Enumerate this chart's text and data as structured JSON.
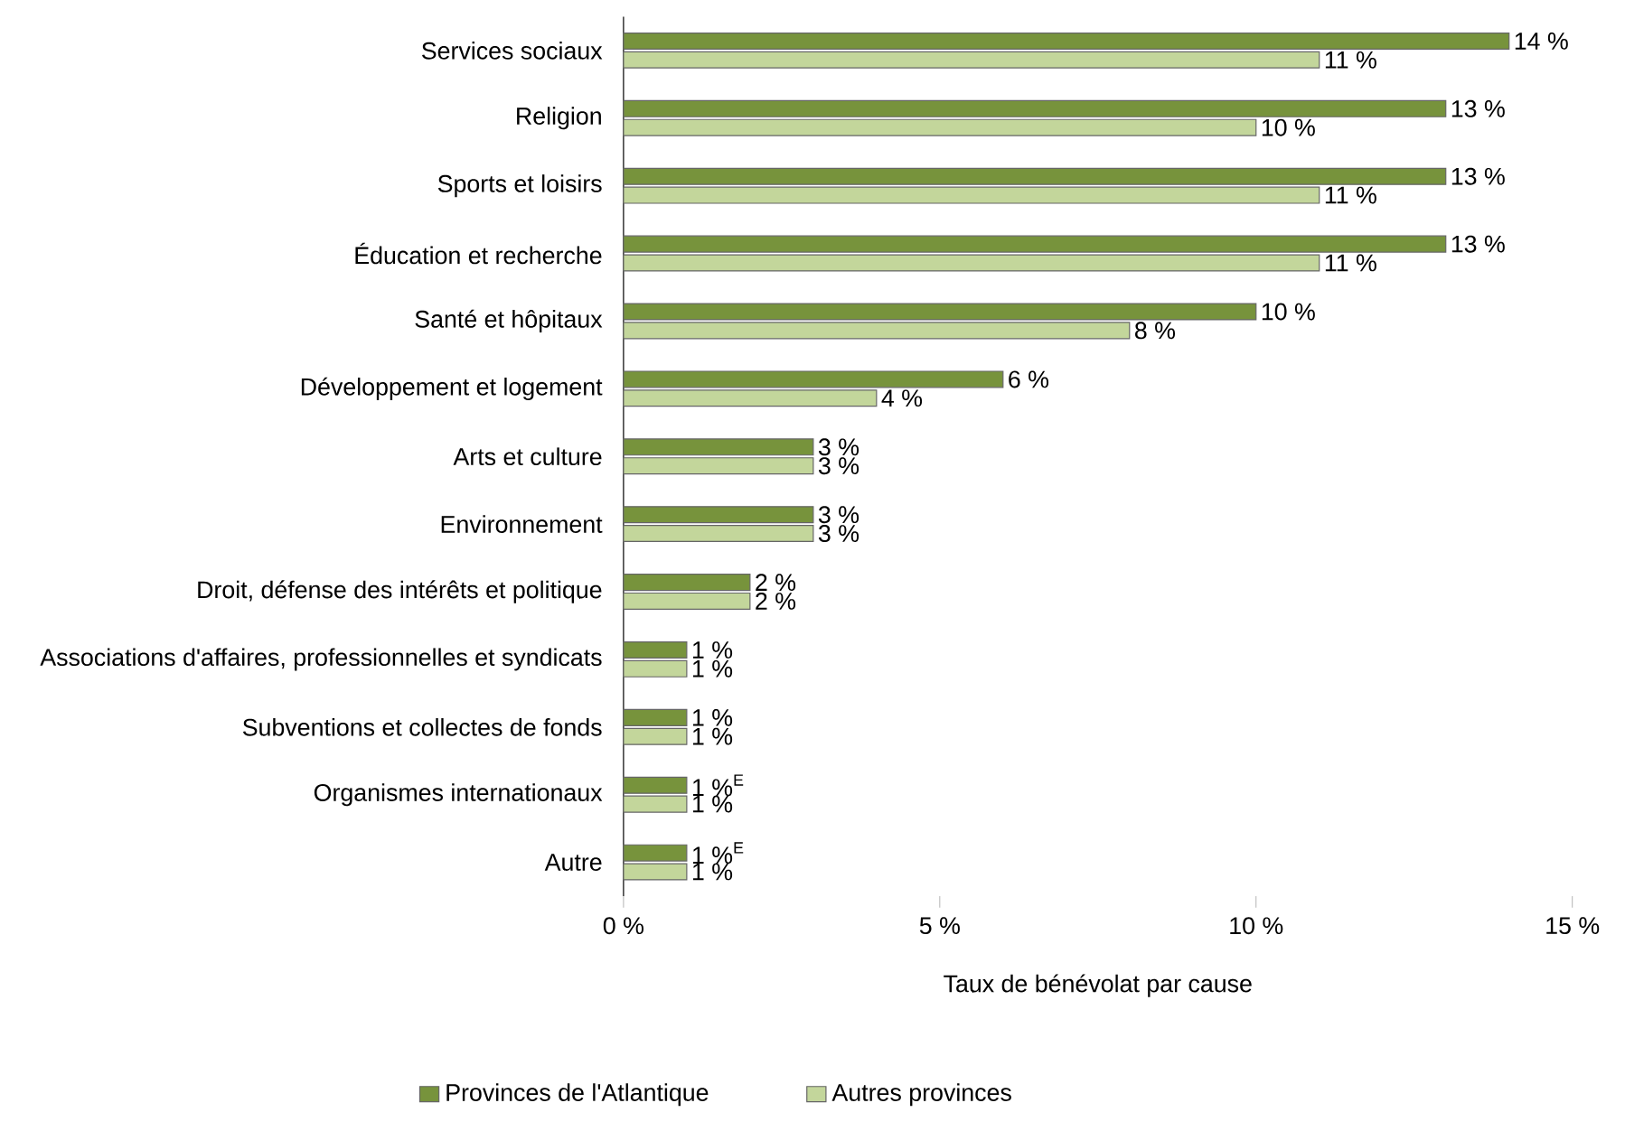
{
  "chart_data": {
    "type": "bar",
    "orientation": "horizontal",
    "xlabel": "Taux de bénévolat par cause",
    "categories": [
      "Services sociaux",
      "Religion",
      "Sports et loisirs",
      "Éducation et recherche",
      "Santé et hôpitaux",
      "Développement et logement",
      "Arts et culture",
      "Environnement",
      "Droit, défense des intérêts et politique",
      "Associations d'affaires, professionnelles et syndicats",
      "Subventions et collectes de fonds",
      "Organismes internationaux",
      "Autre"
    ],
    "series": [
      {
        "name": "Provinces de l'Atlantique",
        "color": "#77933c",
        "values": [
          14,
          13,
          13,
          13,
          10,
          6,
          3,
          3,
          2,
          1,
          1,
          1,
          1
        ],
        "value_labels": [
          "14 %",
          "13 %",
          "13 %",
          "13 %",
          "10 %",
          "6 %",
          "3 %",
          "3 %",
          "2 %",
          "1 %",
          "1 %",
          "1 %$^{E}$",
          "1 %$^{E}$"
        ]
      },
      {
        "name": "Autres provinces",
        "color": "#c3d69b",
        "values": [
          11,
          10,
          11,
          11,
          8,
          4,
          3,
          3,
          2,
          1,
          1,
          1,
          1
        ],
        "value_labels": [
          "11 %",
          "10 %",
          "11 %",
          "11 %",
          "8 %",
          "4 %",
          "3 %",
          "3 %",
          "2 %",
          "1 %",
          "1 %",
          "1 %",
          "1 %"
        ]
      }
    ],
    "xlim": [
      0,
      15
    ],
    "xticks": [
      {
        "value": 0,
        "label": "0 %"
      },
      {
        "value": 5,
        "label": "5 %"
      },
      {
        "value": 10,
        "label": "10 %"
      },
      {
        "value": 15,
        "label": "15 %"
      }
    ],
    "legend": "bottom",
    "grid": false
  }
}
